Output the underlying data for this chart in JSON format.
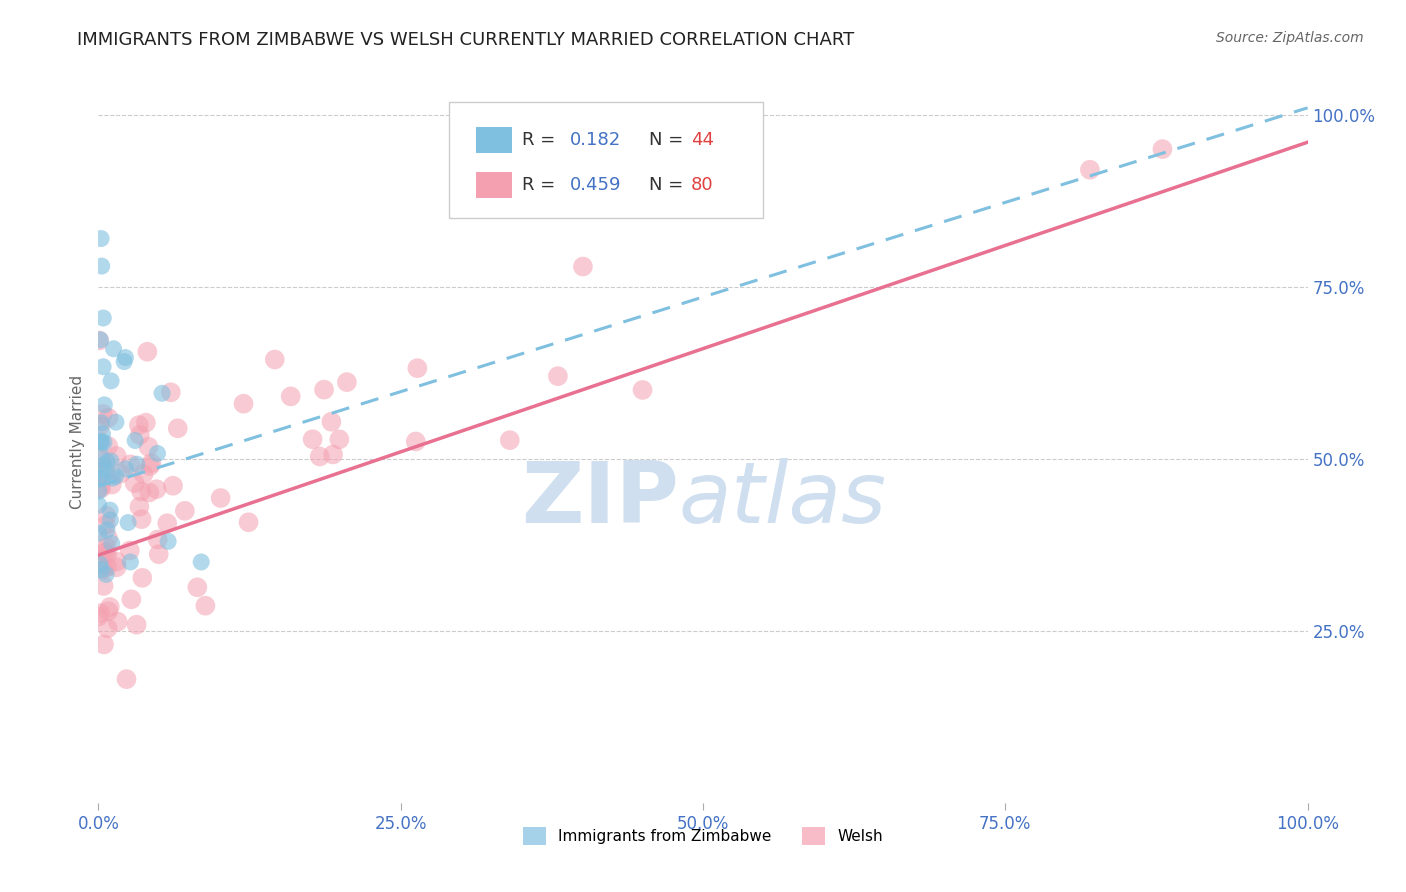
{
  "title": "IMMIGRANTS FROM ZIMBABWE VS WELSH CURRENTLY MARRIED CORRELATION CHART",
  "source": "Source: ZipAtlas.com",
  "ylabel": "Currently Married",
  "xlim": [
    0.0,
    1.0
  ],
  "ylim": [
    0.0,
    1.05
  ],
  "xticks": [
    0.0,
    0.25,
    0.5,
    0.75,
    1.0
  ],
  "yticks": [
    0.25,
    0.5,
    0.75,
    1.0
  ],
  "xticklabels": [
    "0.0%",
    "25.0%",
    "50.0%",
    "75.0%",
    "100.0%"
  ],
  "yticklabels": [
    "25.0%",
    "50.0%",
    "75.0%",
    "100.0%"
  ],
  "series1_label": "Immigrants from Zimbabwe",
  "series1_R": "0.182",
  "series1_N": "44",
  "series1_color": "#7fbfdf",
  "series2_label": "Welsh",
  "series2_R": "0.459",
  "series2_N": "80",
  "series2_color": "#f4a0b0",
  "watermark_zip": "ZIP",
  "watermark_atlas": "atlas",
  "watermark_color": "#d0dff0",
  "background_color": "#ffffff",
  "grid_color": "#cccccc",
  "tick_color": "#4472c4",
  "title_color": "#222222",
  "title_fontsize": 13,
  "axis_label_color": "#666666",
  "R_color": "#4472c4",
  "N_color": "#e04040",
  "trendline1_color": "#7fbfdf",
  "trendline2_color": "#e87090",
  "trendline1_intercept": 0.46,
  "trendline1_slope": 0.55,
  "trendline2_intercept": 0.36,
  "trendline2_slope": 0.6
}
